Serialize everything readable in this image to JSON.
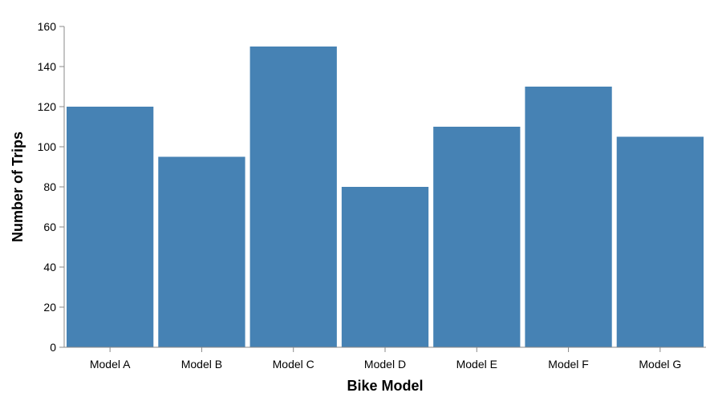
{
  "chart_data": {
    "type": "bar",
    "categories": [
      "Model A",
      "Model B",
      "Model C",
      "Model D",
      "Model E",
      "Model F",
      "Model G"
    ],
    "values": [
      120,
      95,
      150,
      80,
      110,
      130,
      105
    ],
    "title": "",
    "xlabel": "Bike Model",
    "ylabel": "Number of Trips",
    "ylim": [
      0,
      160
    ],
    "yticks": [
      0,
      20,
      40,
      60,
      80,
      100,
      120,
      140,
      160
    ],
    "grid": false,
    "legend": "none",
    "bar_color": "#4682b4",
    "axis_color": "#888888"
  }
}
